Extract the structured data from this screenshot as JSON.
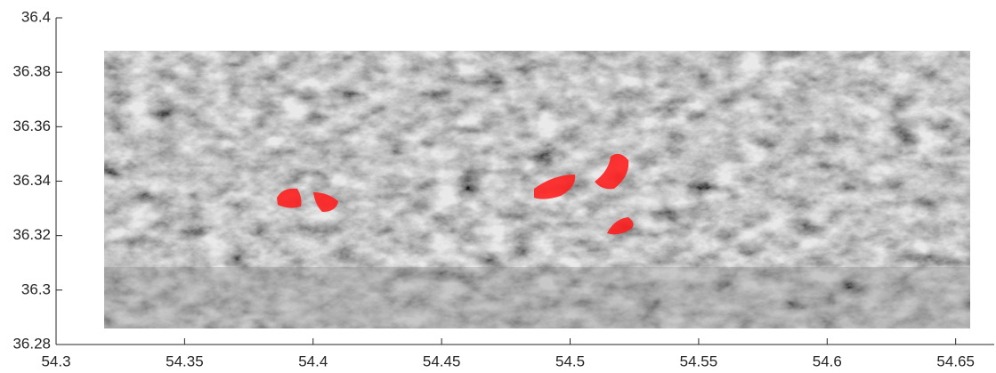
{
  "chart_data": {
    "type": "map",
    "xlim": [
      54.3,
      54.665
    ],
    "ylim": [
      36.28,
      36.4
    ],
    "xticks": [
      54.3,
      54.35,
      54.4,
      54.45,
      54.5,
      54.55,
      54.6,
      54.65
    ],
    "yticks": [
      36.28,
      36.3,
      36.32,
      36.34,
      36.36,
      36.38,
      36.4
    ]
  }
}
